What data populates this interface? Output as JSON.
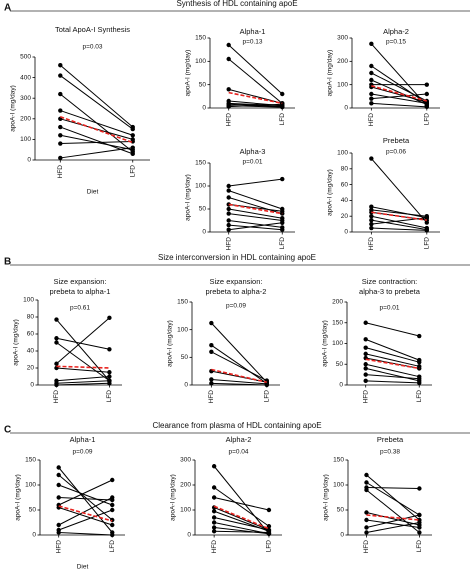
{
  "panels": [
    {
      "letter": "A",
      "heading": "Synthesis of HDL containing apoE"
    },
    {
      "letter": "B",
      "heading": "Size interconversion in HDL containing apoE"
    },
    {
      "letter": "C",
      "heading": "Clearance from plasma of HDL containing apoE"
    }
  ],
  "chart_data": [
    {
      "type": "line",
      "title": "Total ApoA-I Synthesis",
      "annotation": "p=0.03",
      "ylabel": "apoA-I (mg/day)",
      "xlabel": "Diet",
      "categories": [
        "HFD",
        "LFD"
      ],
      "ylim": [
        0,
        500
      ],
      "yticks": [
        0,
        100,
        200,
        300,
        400,
        500
      ],
      "series": [
        {
          "color": "#000000",
          "values": [
            460,
            160
          ]
        },
        {
          "color": "#000000",
          "values": [
            410,
            150
          ]
        },
        {
          "color": "#000000",
          "values": [
            320,
            40
          ]
        },
        {
          "color": "#000000",
          "values": [
            240,
            120
          ]
        },
        {
          "color": "#000000",
          "values": [
            200,
            100
          ]
        },
        {
          "color": "#000000",
          "values": [
            160,
            30
          ]
        },
        {
          "color": "#000000",
          "values": [
            120,
            50
          ]
        },
        {
          "color": "#000000",
          "values": [
            80,
            90
          ]
        },
        {
          "color": "#000000",
          "values": [
            10,
            60
          ]
        },
        {
          "color": "#e8231f",
          "dashed": true,
          "values": [
            210,
            85
          ]
        }
      ]
    },
    {
      "type": "line",
      "title": "Alpha-1",
      "annotation": "p=0.13",
      "ylabel": "apoA-I (mg/day)",
      "categories": [
        "HFD",
        "LFD"
      ],
      "ylim": [
        0,
        150
      ],
      "yticks": [
        0,
        50,
        100,
        150
      ],
      "series": [
        {
          "color": "#000000",
          "values": [
            135,
            30
          ]
        },
        {
          "color": "#000000",
          "values": [
            105,
            10
          ]
        },
        {
          "color": "#000000",
          "values": [
            40,
            10
          ]
        },
        {
          "color": "#000000",
          "values": [
            15,
            5
          ]
        },
        {
          "color": "#000000",
          "values": [
            10,
            5
          ]
        },
        {
          "color": "#000000",
          "values": [
            8,
            3
          ]
        },
        {
          "color": "#000000",
          "values": [
            5,
            2
          ]
        },
        {
          "color": "#000000",
          "values": [
            3,
            8
          ]
        },
        {
          "color": "#e8231f",
          "dashed": true,
          "values": [
            33,
            10
          ]
        }
      ]
    },
    {
      "type": "line",
      "title": "Alpha-2",
      "annotation": "p=0.15",
      "ylabel": "apoA-I (mg/day)",
      "categories": [
        "HFD",
        "LFD"
      ],
      "ylim": [
        0,
        300
      ],
      "yticks": [
        0,
        100,
        200,
        300
      ],
      "series": [
        {
          "color": "#000000",
          "values": [
            275,
            10
          ]
        },
        {
          "color": "#000000",
          "values": [
            180,
            20
          ]
        },
        {
          "color": "#000000",
          "values": [
            150,
            30
          ]
        },
        {
          "color": "#000000",
          "values": [
            120,
            15
          ]
        },
        {
          "color": "#000000",
          "values": [
            100,
            100
          ]
        },
        {
          "color": "#000000",
          "values": [
            90,
            25
          ]
        },
        {
          "color": "#000000",
          "values": [
            60,
            20
          ]
        },
        {
          "color": "#000000",
          "values": [
            40,
            60
          ]
        },
        {
          "color": "#000000",
          "values": [
            20,
            5
          ]
        },
        {
          "color": "#e8231f",
          "dashed": true,
          "values": [
            95,
            30
          ]
        }
      ]
    },
    {
      "type": "line",
      "title": "Alpha-3",
      "annotation": "p=0.01",
      "ylabel": "apoA-I (mg/day)",
      "categories": [
        "HFD",
        "LFD"
      ],
      "ylim": [
        0,
        150
      ],
      "yticks": [
        0,
        50,
        100,
        150
      ],
      "series": [
        {
          "color": "#000000",
          "values": [
            100,
            115
          ]
        },
        {
          "color": "#000000",
          "values": [
            90,
            50
          ]
        },
        {
          "color": "#000000",
          "values": [
            75,
            40
          ]
        },
        {
          "color": "#000000",
          "values": [
            60,
            45
          ]
        },
        {
          "color": "#000000",
          "values": [
            50,
            30
          ]
        },
        {
          "color": "#000000",
          "values": [
            40,
            25
          ]
        },
        {
          "color": "#000000",
          "values": [
            25,
            10
          ]
        },
        {
          "color": "#000000",
          "values": [
            15,
            5
          ]
        },
        {
          "color": "#000000",
          "values": [
            5,
            20
          ]
        },
        {
          "color": "#e8231f",
          "dashed": true,
          "values": [
            60,
            40
          ]
        }
      ]
    },
    {
      "type": "line",
      "title": "Prebeta",
      "annotation": "p=0.06",
      "ylabel": "apoA-I (mg/day)",
      "categories": [
        "HFD",
        "LFD"
      ],
      "ylim": [
        0,
        100
      ],
      "yticks": [
        0,
        20,
        40,
        60,
        80,
        100
      ],
      "series": [
        {
          "color": "#000000",
          "values": [
            93,
            12
          ]
        },
        {
          "color": "#000000",
          "values": [
            32,
            18
          ]
        },
        {
          "color": "#000000",
          "values": [
            28,
            20
          ]
        },
        {
          "color": "#000000",
          "values": [
            25,
            15
          ]
        },
        {
          "color": "#000000",
          "values": [
            20,
            5
          ]
        },
        {
          "color": "#000000",
          "values": [
            15,
            3
          ]
        },
        {
          "color": "#000000",
          "values": [
            10,
            18
          ]
        },
        {
          "color": "#000000",
          "values": [
            5,
            2
          ]
        },
        {
          "color": "#e8231f",
          "dashed": true,
          "values": [
            25,
            15
          ]
        }
      ]
    },
    {
      "type": "line",
      "title": [
        "Size expansion:",
        "prebeta to alpha-1"
      ],
      "annotation": "p=0.61",
      "ylabel": "apoA-I (mg/day)",
      "categories": [
        "HFD",
        "LFD"
      ],
      "ylim": [
        0,
        100
      ],
      "yticks": [
        0,
        20,
        40,
        60,
        80,
        100
      ],
      "series": [
        {
          "color": "#000000",
          "values": [
            77,
            5
          ]
        },
        {
          "color": "#000000",
          "values": [
            55,
            42
          ]
        },
        {
          "color": "#000000",
          "values": [
            50,
            5
          ]
        },
        {
          "color": "#000000",
          "values": [
            25,
            79
          ]
        },
        {
          "color": "#000000",
          "values": [
            20,
            15
          ]
        },
        {
          "color": "#000000",
          "values": [
            5,
            10
          ]
        },
        {
          "color": "#000000",
          "values": [
            2,
            5
          ]
        },
        {
          "color": "#000000",
          "values": [
            0,
            2
          ]
        },
        {
          "color": "#e8231f",
          "dashed": true,
          "values": [
            22,
            20
          ]
        }
      ]
    },
    {
      "type": "line",
      "title": [
        "Size expansion:",
        "prebeta to alpha-2"
      ],
      "annotation": "p=0.09",
      "ylabel": "apoA-I (mg/day)",
      "categories": [
        "HFD",
        "LFD"
      ],
      "ylim": [
        0,
        150
      ],
      "yticks": [
        0,
        50,
        100,
        150
      ],
      "series": [
        {
          "color": "#000000",
          "values": [
            112,
            5
          ]
        },
        {
          "color": "#000000",
          "values": [
            72,
            3
          ]
        },
        {
          "color": "#000000",
          "values": [
            60,
            8
          ]
        },
        {
          "color": "#000000",
          "values": [
            25,
            5
          ]
        },
        {
          "color": "#000000",
          "values": [
            10,
            2
          ]
        },
        {
          "color": "#000000",
          "values": [
            3,
            0
          ]
        },
        {
          "color": "#e8231f",
          "dashed": true,
          "values": [
            28,
            5
          ]
        }
      ]
    },
    {
      "type": "line",
      "title": [
        "Size contraction:",
        "alpha-3 to prebeta"
      ],
      "annotation": "p=0.01",
      "ylabel": "apoA-I (mg/day)",
      "categories": [
        "HFD",
        "LFD"
      ],
      "ylim": [
        0,
        200
      ],
      "yticks": [
        0,
        50,
        100,
        150,
        200
      ],
      "series": [
        {
          "color": "#000000",
          "values": [
            150,
            118
          ]
        },
        {
          "color": "#000000",
          "values": [
            110,
            60
          ]
        },
        {
          "color": "#000000",
          "values": [
            90,
            55
          ]
        },
        {
          "color": "#000000",
          "values": [
            75,
            45
          ]
        },
        {
          "color": "#000000",
          "values": [
            65,
            40
          ]
        },
        {
          "color": "#000000",
          "values": [
            50,
            20
          ]
        },
        {
          "color": "#000000",
          "values": [
            40,
            10
          ]
        },
        {
          "color": "#000000",
          "values": [
            25,
            15
          ]
        },
        {
          "color": "#000000",
          "values": [
            10,
            5
          ]
        },
        {
          "color": "#e8231f",
          "dashed": true,
          "values": [
            62,
            40
          ]
        }
      ]
    },
    {
      "type": "line",
      "title": "Alpha-1",
      "annotation": "p=0.09",
      "ylabel": "apoA-I (mg/day)",
      "xlabel": "Diet",
      "categories": [
        "HFD",
        "LFD"
      ],
      "ylim": [
        0,
        150
      ],
      "yticks": [
        0,
        50,
        100,
        150
      ],
      "series": [
        {
          "color": "#000000",
          "values": [
            135,
            5
          ]
        },
        {
          "color": "#000000",
          "values": [
            120,
            30
          ]
        },
        {
          "color": "#000000",
          "values": [
            100,
            60
          ]
        },
        {
          "color": "#000000",
          "values": [
            75,
            70
          ]
        },
        {
          "color": "#000000",
          "values": [
            60,
            110
          ]
        },
        {
          "color": "#000000",
          "values": [
            55,
            20
          ]
        },
        {
          "color": "#000000",
          "values": [
            20,
            75
          ]
        },
        {
          "color": "#000000",
          "values": [
            10,
            50
          ]
        },
        {
          "color": "#000000",
          "values": [
            5,
            0
          ]
        },
        {
          "color": "#e8231f",
          "dashed": true,
          "values": [
            58,
            28
          ]
        }
      ]
    },
    {
      "type": "line",
      "title": "Alpha-2",
      "annotation": "p=0.04",
      "ylabel": "apoA-I (mg/day)",
      "categories": [
        "HFD",
        "LFD"
      ],
      "ylim": [
        0,
        300
      ],
      "yticks": [
        0,
        100,
        200,
        300
      ],
      "series": [
        {
          "color": "#000000",
          "values": [
            275,
            5
          ]
        },
        {
          "color": "#000000",
          "values": [
            190,
            35
          ]
        },
        {
          "color": "#000000",
          "values": [
            150,
            100
          ]
        },
        {
          "color": "#000000",
          "values": [
            110,
            20
          ]
        },
        {
          "color": "#000000",
          "values": [
            95,
            15
          ]
        },
        {
          "color": "#000000",
          "values": [
            70,
            20
          ]
        },
        {
          "color": "#000000",
          "values": [
            50,
            5
          ]
        },
        {
          "color": "#000000",
          "values": [
            30,
            5
          ]
        },
        {
          "color": "#000000",
          "values": [
            15,
            10
          ]
        },
        {
          "color": "#e8231f",
          "dashed": true,
          "values": [
            115,
            25
          ]
        }
      ]
    },
    {
      "type": "line",
      "title": "Prebeta",
      "annotation": "p=0.38",
      "ylabel": "apoA-I (mg/day)",
      "categories": [
        "HFD",
        "LFD"
      ],
      "ylim": [
        0,
        150
      ],
      "yticks": [
        0,
        50,
        100,
        150
      ],
      "series": [
        {
          "color": "#000000",
          "values": [
            120,
            30
          ]
        },
        {
          "color": "#000000",
          "values": [
            105,
            40
          ]
        },
        {
          "color": "#000000",
          "values": [
            95,
            93
          ]
        },
        {
          "color": "#000000",
          "values": [
            90,
            5
          ]
        },
        {
          "color": "#000000",
          "values": [
            45,
            20
          ]
        },
        {
          "color": "#000000",
          "values": [
            30,
            15
          ]
        },
        {
          "color": "#000000",
          "values": [
            15,
            40
          ]
        },
        {
          "color": "#000000",
          "values": [
            5,
            25
          ]
        },
        {
          "color": "#e8231f",
          "dashed": true,
          "values": [
            40,
            30
          ]
        }
      ]
    }
  ]
}
